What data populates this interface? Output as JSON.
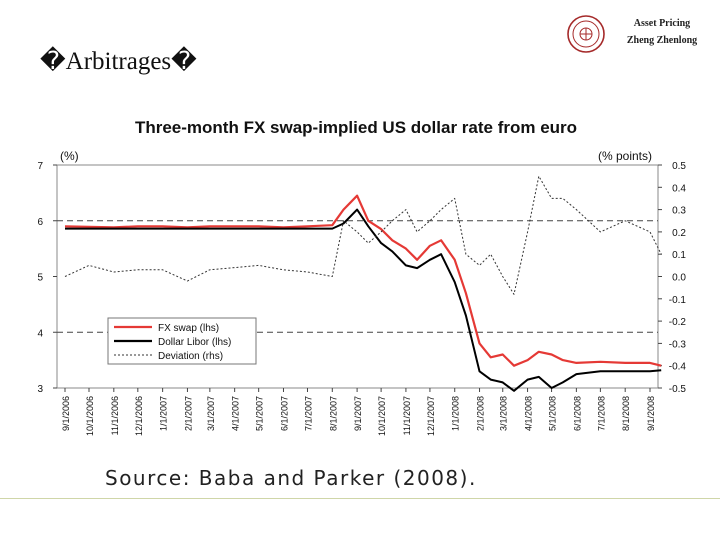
{
  "slide": {
    "title": "�Arbitrages�",
    "course": "Asset Pricing",
    "author": "Zheng Zhenlong",
    "source": "Source: Baba and Parker (2008)."
  },
  "chart_data": {
    "type": "line",
    "title": "Three-month FX swap-implied US dollar rate from euro",
    "left_unit": "(%)",
    "right_unit": "(% points)",
    "left_ylim": [
      3,
      7
    ],
    "right_ylim": [
      -0.5,
      0.5
    ],
    "left_ticks": [
      "7",
      "6",
      "5",
      "4",
      "3"
    ],
    "right_ticks": [
      "0.5",
      "0.4",
      "0.3",
      "0.2",
      "0.1",
      "0.0",
      "-0.1",
      "-0.2",
      "-0.3",
      "-0.4",
      "-0.5"
    ],
    "x_ticks": [
      "9/1/2006",
      "10/1/2006",
      "11/1/2006",
      "12/1/2006",
      "1/1/2007",
      "2/1/2007",
      "3/1/2007",
      "4/1/2007",
      "5/1/2007",
      "6/1/2007",
      "7/1/2007",
      "8/1/2007",
      "9/1/2007",
      "10/1/2007",
      "11/1/2007",
      "12/1/2007",
      "1/1/2008",
      "2/1/2008",
      "3/1/2008",
      "4/1/2008",
      "5/1/2008",
      "6/1/2008",
      "7/1/2008",
      "8/1/2008",
      "9/1/2008"
    ],
    "x": [
      "9/1/2006",
      "10/1/2006",
      "11/1/2006",
      "12/1/2006",
      "1/1/2007",
      "2/1/2007",
      "3/1/2007",
      "4/1/2007",
      "5/1/2007",
      "6/1/2007",
      "7/1/2007",
      "8/1/2007",
      "8/15/2007",
      "9/1/2007",
      "9/15/2007",
      "10/1/2007",
      "10/15/2007",
      "11/1/2007",
      "11/15/2007",
      "12/1/2007",
      "12/15/2007",
      "1/1/2008",
      "1/15/2008",
      "2/1/2008",
      "2/15/2008",
      "3/1/2008",
      "3/15/2008",
      "4/1/2008",
      "4/15/2008",
      "5/1/2008",
      "5/15/2008",
      "6/1/2008",
      "7/1/2008",
      "8/1/2008",
      "9/1/2008",
      "9/15/2008"
    ],
    "series": [
      {
        "name": "FX swap (lhs)",
        "color": "#e53935",
        "axis": "left",
        "values": [
          5.9,
          5.89,
          5.88,
          5.9,
          5.9,
          5.88,
          5.9,
          5.9,
          5.9,
          5.88,
          5.9,
          5.92,
          6.2,
          6.45,
          6.0,
          5.85,
          5.65,
          5.5,
          5.3,
          5.55,
          5.65,
          5.3,
          4.7,
          3.8,
          3.55,
          3.6,
          3.4,
          3.5,
          3.65,
          3.6,
          3.5,
          3.45,
          3.47,
          3.45,
          3.45,
          3.4
        ]
      },
      {
        "name": "Dollar Libor (lhs)",
        "color": "#000000",
        "axis": "left",
        "values": [
          5.86,
          5.86,
          5.86,
          5.86,
          5.86,
          5.86,
          5.86,
          5.86,
          5.86,
          5.86,
          5.86,
          5.86,
          5.95,
          6.2,
          5.9,
          5.6,
          5.45,
          5.2,
          5.15,
          5.3,
          5.4,
          4.9,
          4.3,
          3.3,
          3.15,
          3.1,
          2.95,
          3.15,
          3.2,
          3.0,
          3.1,
          3.25,
          3.3,
          3.3,
          3.3,
          3.32
        ]
      },
      {
        "name": "Deviation (rhs)",
        "color": "#333333",
        "axis": "right",
        "values": [
          0.0,
          0.05,
          0.02,
          0.03,
          0.03,
          -0.02,
          0.03,
          0.04,
          0.05,
          0.03,
          0.02,
          0.0,
          0.25,
          0.2,
          0.15,
          0.2,
          0.25,
          0.3,
          0.2,
          0.25,
          0.3,
          0.35,
          0.1,
          0.05,
          0.1,
          0.0,
          -0.08,
          0.2,
          0.45,
          0.35,
          0.35,
          0.3,
          0.2,
          0.25,
          0.2,
          0.1
        ]
      }
    ],
    "legend": {
      "placement": "bottom-left"
    },
    "reference_lines_left": [
      6,
      4
    ],
    "grid": false
  }
}
